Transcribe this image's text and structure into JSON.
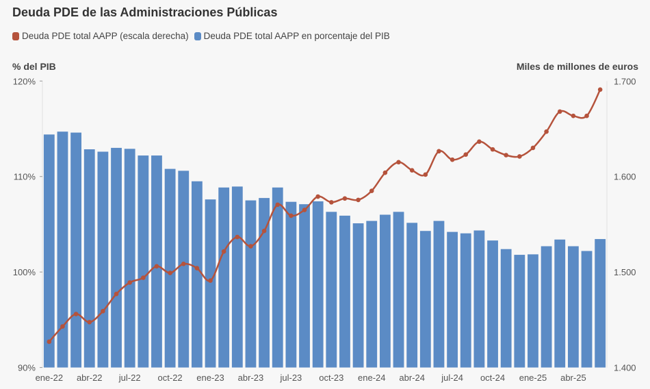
{
  "chart_data": {
    "type": "bar+line",
    "title": "Deuda PDE de las Administraciones Públicas",
    "ylabel_left": "% del PIB",
    "ylabel_right": "Miles de millones de euros",
    "ylim_left": [
      90,
      120
    ],
    "ylim_right": [
      1400,
      1700
    ],
    "yticks_left": [
      "90%",
      "100%",
      "110%",
      "120%"
    ],
    "yticks_right": [
      "1.400",
      "1.500",
      "1.600",
      "1.700"
    ],
    "grid": false,
    "legend_placement": "top-left",
    "x_tick_labels": [
      "ene-22",
      "abr-22",
      "jul-22",
      "oct-22",
      "ene-23",
      "abr-23",
      "jul-23",
      "oct-23",
      "ene-24",
      "abr-24",
      "jul-24",
      "oct-24",
      "ene-25",
      "abr-25"
    ],
    "categories": [
      "ene-22",
      "feb-22",
      "mar-22",
      "abr-22",
      "may-22",
      "jun-22",
      "jul-22",
      "ago-22",
      "sep-22",
      "oct-22",
      "nov-22",
      "dic-22",
      "ene-23",
      "feb-23",
      "mar-23",
      "abr-23",
      "may-23",
      "jun-23",
      "jul-23",
      "ago-23",
      "sep-23",
      "oct-23",
      "nov-23",
      "dic-23",
      "ene-24",
      "feb-24",
      "mar-24",
      "abr-24",
      "may-24",
      "jun-24",
      "jul-24",
      "ago-24",
      "sep-24",
      "oct-24",
      "nov-24",
      "dic-24",
      "ene-25",
      "feb-25",
      "mar-25",
      "abr-25",
      "may-25",
      "jun-25"
    ],
    "series": [
      {
        "name": "Deuda PDE total AAPP (escala derecha)",
        "type": "line",
        "axis": "right",
        "color": "#b5533c",
        "values": [
          1427,
          1443,
          1456,
          1447.5,
          1459,
          1477,
          1489,
          1494,
          1506,
          1499,
          1508.5,
          1504,
          1491,
          1521.5,
          1536.7,
          1527,
          1543,
          1570.5,
          1559,
          1565,
          1579,
          1573,
          1577,
          1575.5,
          1585,
          1604,
          1615,
          1606.5,
          1602,
          1626.5,
          1617.6,
          1623,
          1636.5,
          1628.4,
          1622.4,
          1621,
          1630,
          1647,
          1668,
          1663.5,
          1663.5,
          1691
        ]
      },
      {
        "name": "Deuda PDE total AAPP en porcentaje del PIB",
        "type": "bar",
        "axis": "left",
        "color": "#5b8bc5",
        "values": [
          114.4,
          114.7,
          114.6,
          112.85,
          112.6,
          113.0,
          112.9,
          112.2,
          112.2,
          110.8,
          110.6,
          109.5,
          107.6,
          108.85,
          108.95,
          107.5,
          107.75,
          108.85,
          107.35,
          107.1,
          107.4,
          106.3,
          105.9,
          105.1,
          105.35,
          106.0,
          106.3,
          105.15,
          104.3,
          105.35,
          104.2,
          104.05,
          104.35,
          103.3,
          102.4,
          101.8,
          101.85,
          102.7,
          103.4,
          102.7,
          102.2,
          103.45
        ]
      }
    ]
  }
}
